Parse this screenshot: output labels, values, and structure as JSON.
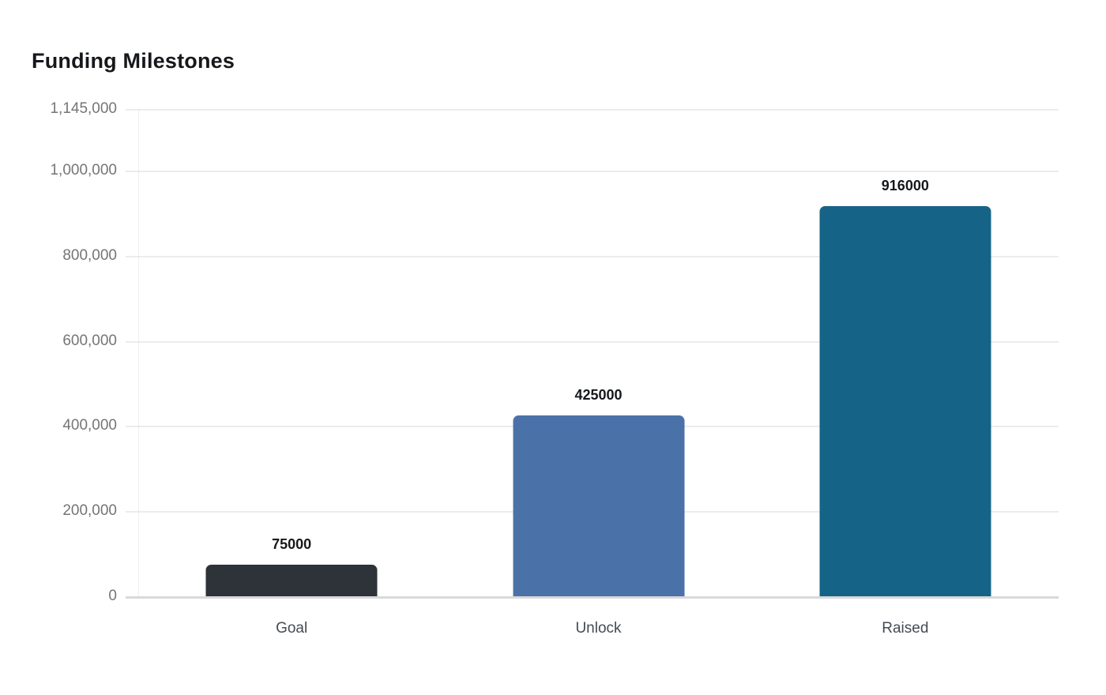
{
  "chart_data": {
    "type": "bar",
    "title": "Funding Milestones",
    "categories": [
      "Goal",
      "Unlock",
      "Raised"
    ],
    "values": [
      75000,
      425000,
      916000
    ],
    "value_labels": [
      "75000",
      "425000",
      "916000"
    ],
    "bar_colors": [
      "#2d3338",
      "#4a72a8",
      "#166388"
    ],
    "ylim": [
      0,
      1145000
    ],
    "yticks": [
      {
        "value": 0,
        "label": "0"
      },
      {
        "value": 200000,
        "label": "200,000"
      },
      {
        "value": 400000,
        "label": "400,000"
      },
      {
        "value": 600000,
        "label": "600,000"
      },
      {
        "value": 800000,
        "label": "800,000"
      },
      {
        "value": 1000000,
        "label": "1,000,000"
      },
      {
        "value": 1145000,
        "label": "1,145,000"
      }
    ],
    "xlabel": "",
    "ylabel": "",
    "grid": true,
    "legend": "none",
    "background": "#ffffff",
    "tick_label_color": "#757575",
    "category_label_color": "#444b54",
    "gridline_color": "#ececec",
    "zero_line_color": "#d9d9d9"
  }
}
